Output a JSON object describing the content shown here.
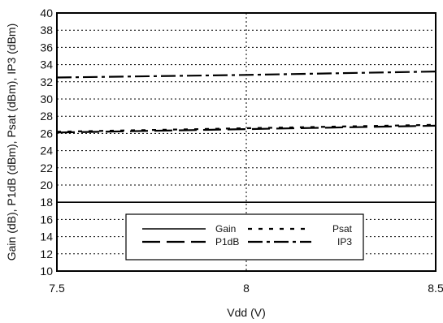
{
  "chart_data": {
    "type": "line",
    "xlabel": "Vdd (V)",
    "ylabel": "Gain (dB), P1dB (dBm), Psat (dBm), IP3 (dBm)",
    "xlim": [
      7.5,
      8.5
    ],
    "ylim": [
      10,
      40
    ],
    "xticks": [
      7.5,
      8,
      8.5
    ],
    "xtick_labels": [
      "7.5",
      "8",
      "8.5"
    ],
    "yticks": [
      10,
      12,
      14,
      16,
      18,
      20,
      22,
      24,
      26,
      28,
      30,
      32,
      34,
      36,
      38,
      40
    ],
    "ytick_labels": [
      "10",
      "12",
      "14",
      "16",
      "18",
      "20",
      "22",
      "24",
      "26",
      "28",
      "30",
      "32",
      "34",
      "36",
      "38",
      "40"
    ],
    "grid": true,
    "grid_style": "dotted horizontal lines every 2 units, dotted vertical line at x=8",
    "legend_position": "bottom-center",
    "series": [
      {
        "name": "Gain",
        "line_style": "solid",
        "color": "#000000",
        "x": [
          7.5,
          8.0,
          8.5
        ],
        "y": [
          18.0,
          18.0,
          18.0
        ]
      },
      {
        "name": "Psat",
        "line_style": "dotted",
        "color": "#000000",
        "x": [
          7.5,
          8.0,
          8.5
        ],
        "y": [
          26.2,
          26.6,
          27.0
        ]
      },
      {
        "name": "P1dB",
        "line_style": "dashed",
        "color": "#000000",
        "x": [
          7.5,
          8.0,
          8.5
        ],
        "y": [
          26.1,
          26.5,
          26.9
        ]
      },
      {
        "name": "IP3",
        "line_style": "dash-dot",
        "color": "#000000",
        "x": [
          7.5,
          8.0,
          8.5
        ],
        "y": [
          32.5,
          32.8,
          33.2
        ]
      }
    ]
  }
}
